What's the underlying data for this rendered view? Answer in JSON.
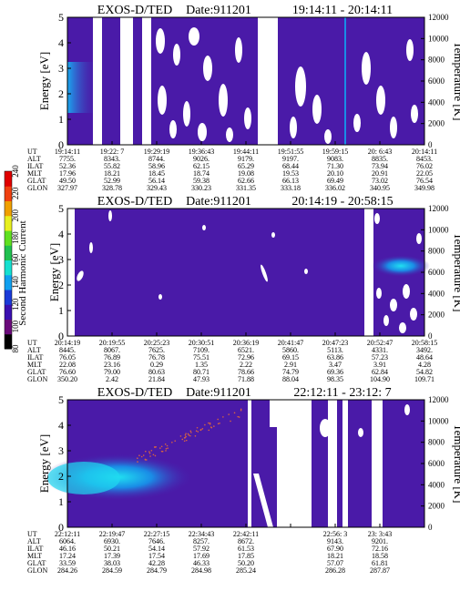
{
  "chart_data": [
    {
      "type": "heatmap",
      "title": "EXOS-D/TED",
      "date_label": "Date:911201",
      "time_range": "19:14:11 - 20:14:11",
      "ylabel": "Energy [eV]",
      "ylabel_right": "Temperature [K]",
      "ylim": [
        0,
        5
      ],
      "yticks": [
        "0",
        "1",
        "2",
        "3",
        "4",
        "5"
      ],
      "ylim_right": [
        0,
        12000
      ],
      "yticks_right": [
        "0",
        "2000",
        "4000",
        "6000",
        "8000",
        "10000",
        "12000"
      ],
      "row_labels": [
        "UT",
        "ALT",
        "ILAT",
        "MLT",
        "GLAT",
        "GLON"
      ],
      "columns": [
        [
          "19:14:11",
          "7755.",
          "52.36",
          "17.96",
          "49.50",
          "327.97"
        ],
        [
          "19:22: 7",
          "8343.",
          "55.82",
          "18.21",
          "52.99",
          "328.78"
        ],
        [
          "19:29:19",
          "8744.",
          "58.96",
          "18.45",
          "56.14",
          "329.43"
        ],
        [
          "19:36:43",
          "9026.",
          "62.15",
          "18.74",
          "59.38",
          "330.23"
        ],
        [
          "19:44:11",
          "9179.",
          "65.29",
          "19.08",
          "62.66",
          "331.35"
        ],
        [
          "19:51:55",
          "9197.",
          "68.44",
          "19.53",
          "66.13",
          "333.18"
        ],
        [
          "19:59:15",
          "9083.",
          "71.30",
          "20.10",
          "69.49",
          "336.02"
        ],
        [
          "20: 6:43",
          "8835.",
          "73.94",
          "20.91",
          "73.02",
          "340.95"
        ],
        [
          "20:14:11",
          "8453.",
          "76.02",
          "22.05",
          "76.54",
          "349.98"
        ]
      ]
    },
    {
      "type": "heatmap",
      "title": "EXOS-D/TED",
      "date_label": "Date:911201",
      "time_range": "20:14:19 - 20:58:15",
      "ylabel": "Energy [eV]",
      "ylabel_right": "Temperature [K]",
      "ylim": [
        0,
        5
      ],
      "yticks": [
        "0",
        "1",
        "2",
        "3",
        "4",
        "5"
      ],
      "ylim_right": [
        0,
        12000
      ],
      "yticks_right": [
        "0",
        "2000",
        "4000",
        "6000",
        "8000",
        "10000",
        "12000"
      ],
      "row_labels": [
        "UT",
        "ALT",
        "ILAT",
        "MLT",
        "GLAT",
        "GLON"
      ],
      "columns": [
        [
          "20:14:19",
          "8445.",
          "76.05",
          "22.08",
          "76.60",
          "350.20"
        ],
        [
          "20:19:55",
          "8067.",
          "76.89",
          "23.16",
          "79.00",
          "2.42"
        ],
        [
          "20:25:23",
          "7625.",
          "76.78",
          "0.29",
          "80.63",
          "21.84"
        ],
        [
          "20:30:51",
          "7109.",
          "75.51",
          "1.35",
          "80.71",
          "47.93"
        ],
        [
          "20:36:19",
          "6521.",
          "72.96",
          "2.22",
          "78.66",
          "71.88"
        ],
        [
          "20:41:47",
          "5860.",
          "69.15",
          "2.91",
          "74.79",
          "88.04"
        ],
        [
          "20:47:23",
          "5113.",
          "63.86",
          "3.47",
          "69.36",
          "98.35"
        ],
        [
          "20:52:47",
          "4331.",
          "57.23",
          "3.91",
          "62.84",
          "104.90"
        ],
        [
          "20:58:15",
          "3492.",
          "48.64",
          "4.28",
          "54.82",
          "109.71"
        ]
      ]
    },
    {
      "type": "heatmap",
      "title": "EXOS-D/TED",
      "date_label": "Date:911201",
      "time_range": "22:12:11 - 23:12: 7",
      "ylabel": "Energy [eV]",
      "ylabel_right": "Temperature [K]",
      "ylim": [
        0,
        5
      ],
      "yticks": [
        "0",
        "1",
        "2",
        "3",
        "4",
        "5"
      ],
      "ylim_right": [
        0,
        12000
      ],
      "yticks_right": [
        "0",
        "2000",
        "4000",
        "6000",
        "8000",
        "10000",
        "12000"
      ],
      "row_labels": [
        "UT",
        "ALT",
        "ILAT",
        "MLT",
        "GLAT",
        "GLON"
      ],
      "columns": [
        [
          "22:12:11",
          "6064.",
          "46.16",
          "17.24",
          "33.59",
          "284.26"
        ],
        [
          "22:19:47",
          "6930.",
          "50.21",
          "17.39",
          "38.03",
          "284.59"
        ],
        [
          "22:27:15",
          "7646.",
          "54.14",
          "17.54",
          "42.28",
          "284.79"
        ],
        [
          "22:34:43",
          "8257.",
          "57.92",
          "17.69",
          "46.33",
          "284.98"
        ],
        [
          "22:42:11",
          "8672.",
          "61.53",
          "17.85",
          "50.20",
          "285.24"
        ],
        [
          "",
          "",
          "",
          "",
          "",
          ""
        ],
        [
          "22:56: 3",
          "9143.",
          "67.90",
          "18.21",
          "57.07",
          "286.28"
        ],
        [
          "23: 3:43",
          "9201.",
          "72.16",
          "18.58",
          "61.81",
          "287.87"
        ],
        [
          "",
          "",
          "",
          "",
          "",
          ""
        ]
      ]
    }
  ],
  "colorbar": {
    "label": "Second Harmonic Current",
    "ticks": [
      "80",
      "100",
      "120",
      "140",
      "160",
      "180",
      "200",
      "220",
      "240"
    ],
    "colors": [
      "#000000",
      "#6a0a7a",
      "#3a10b0",
      "#1a3ad8",
      "#10a0f0",
      "#16e0d0",
      "#20c050",
      "#60e020",
      "#e8f020",
      "#f0a000",
      "#f04010",
      "#e00000"
    ]
  }
}
